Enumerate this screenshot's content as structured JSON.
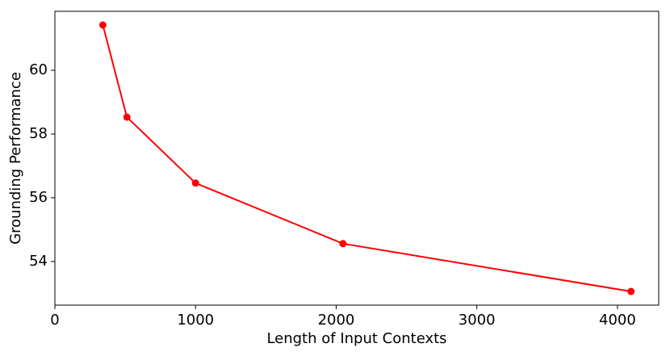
{
  "chart_data": {
    "type": "line",
    "x_label": "Length of Input Contexts",
    "y_label": "Grounding Performance",
    "x": [
      341,
      512,
      1000,
      2048,
      4096
    ],
    "series": [
      {
        "color": "#ff0000",
        "values": [
          61.42,
          58.53,
          56.46,
          54.56,
          53.06
        ]
      }
    ],
    "xlim": [
      0,
      4293
    ],
    "ylim": [
      52.63,
      61.85
    ],
    "xticks": [
      0,
      1000,
      2000,
      3000,
      4000
    ],
    "yticks": [
      54,
      56,
      58,
      60
    ]
  }
}
